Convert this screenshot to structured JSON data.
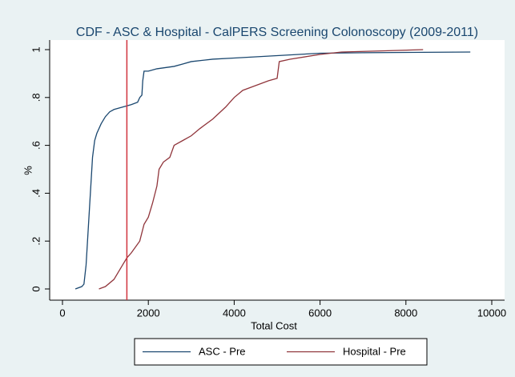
{
  "chart_data": {
    "type": "line",
    "title": "CDF - ASC & Hospital - CalPERS Screening Colonoscopy (2009-2011)",
    "x_label": "Total Cost",
    "y_label": "%",
    "xlim": [
      0,
      10000
    ],
    "ylim": [
      0,
      1
    ],
    "xticks": [
      0,
      2000,
      4000,
      6000,
      8000,
      10000
    ],
    "yticks": [
      0,
      {
        "value": 0.2,
        "label": ".2"
      },
      {
        "value": 0.4,
        "label": ".4"
      },
      {
        "value": 0.6,
        "label": ".6"
      },
      {
        "value": 0.8,
        "label": ".8"
      },
      1
    ],
    "grid": false,
    "legend_position": "bottom",
    "reference_line": {
      "x": 1500,
      "color": "#d0323d"
    },
    "series": [
      {
        "name": "ASC - Pre",
        "color": "#1a476f",
        "x": [
          300,
          450,
          500,
          550,
          600,
          650,
          700,
          750,
          800,
          900,
          1000,
          1100,
          1200,
          1400,
          1600,
          1750,
          1800,
          1850,
          1870,
          1900,
          2000,
          2200,
          2600,
          2800,
          3000,
          3500,
          4000,
          5000,
          6000,
          7000,
          9500
        ],
        "values": [
          0,
          0.01,
          0.02,
          0.1,
          0.25,
          0.4,
          0.55,
          0.62,
          0.65,
          0.69,
          0.72,
          0.74,
          0.75,
          0.76,
          0.77,
          0.78,
          0.8,
          0.81,
          0.87,
          0.91,
          0.91,
          0.92,
          0.93,
          0.94,
          0.95,
          0.96,
          0.965,
          0.975,
          0.985,
          0.987,
          0.99
        ]
      },
      {
        "name": "Hospital - Pre",
        "color": "#90353b",
        "x": [
          850,
          1000,
          1200,
          1400,
          1500,
          1600,
          1800,
          1900,
          2000,
          2100,
          2200,
          2250,
          2350,
          2500,
          2600,
          2800,
          3000,
          3200,
          3500,
          3800,
          4000,
          4200,
          4500,
          4800,
          5000,
          5050,
          5300,
          6000,
          6500,
          7500,
          8400
        ],
        "values": [
          0,
          0.01,
          0.04,
          0.1,
          0.13,
          0.15,
          0.2,
          0.27,
          0.3,
          0.36,
          0.43,
          0.5,
          0.53,
          0.55,
          0.6,
          0.62,
          0.64,
          0.67,
          0.71,
          0.76,
          0.8,
          0.83,
          0.85,
          0.87,
          0.88,
          0.95,
          0.96,
          0.98,
          0.99,
          0.995,
          1
        ]
      }
    ]
  }
}
